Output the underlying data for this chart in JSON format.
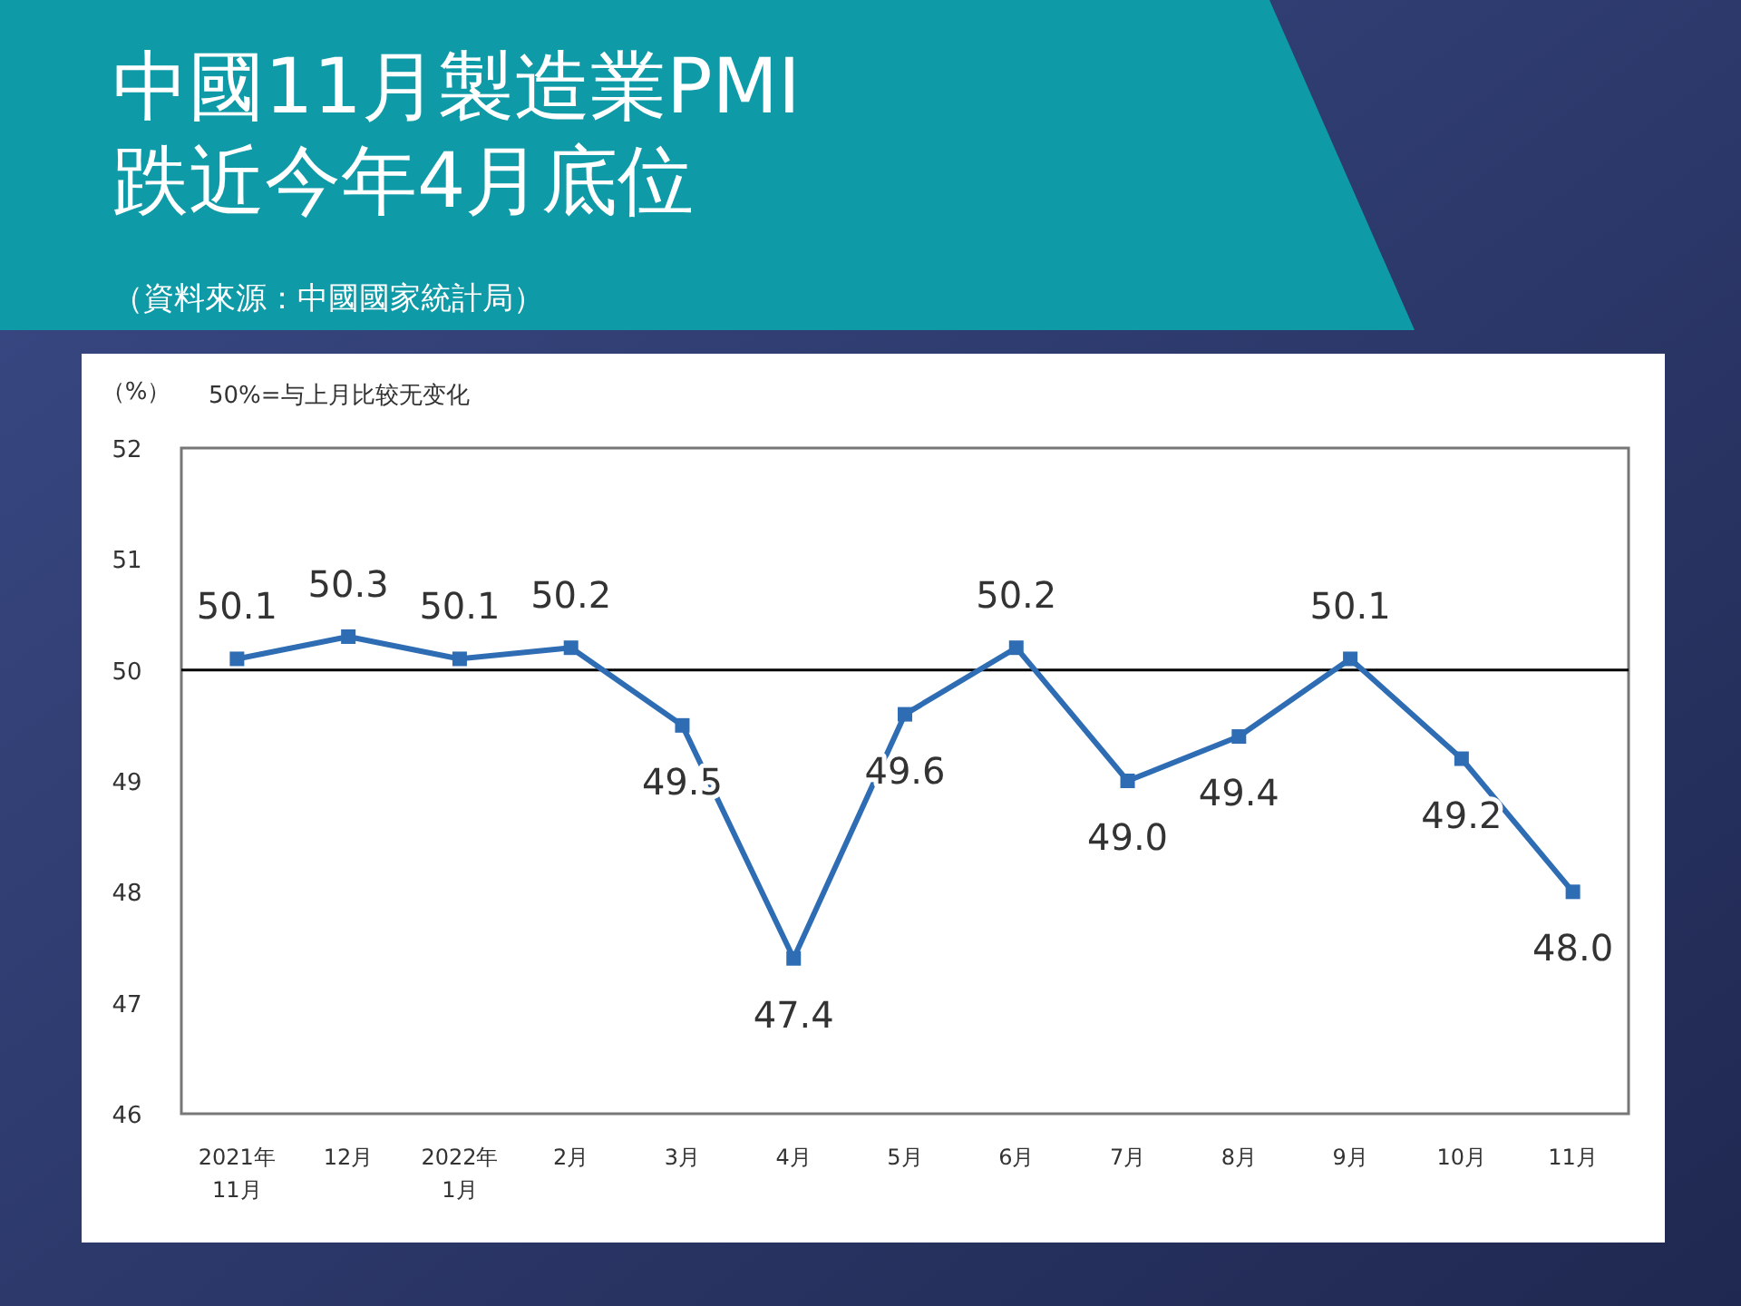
{
  "chart_data": {
    "type": "line",
    "title": "中國11月製造業PMI\n跌近今年4月底位",
    "subtitle": "（資料來源：中國國家統計局）",
    "ylabel": "（%）",
    "annotations": [
      "50%=与上月比较无变化"
    ],
    "categories": [
      "2021年\n11月",
      "12月",
      "2022年\n1月",
      "2月",
      "3月",
      "4月",
      "5月",
      "6月",
      "7月",
      "8月",
      "9月",
      "10月",
      "11月"
    ],
    "series": [
      {
        "color": "#2e6db4",
        "values": [
          50.1,
          50.3,
          50.1,
          50.2,
          49.5,
          47.4,
          49.6,
          50.2,
          49.0,
          49.4,
          50.1,
          49.2,
          48.0
        ],
        "value_labels": [
          "50.1",
          "50.3",
          "50.1",
          "50.2",
          "49.5",
          "47.4",
          "49.6",
          "50.2",
          "49.0",
          "49.4",
          "50.1",
          "49.2",
          "48.0"
        ]
      }
    ],
    "ylim": [
      46,
      52
    ],
    "yticks": [
      46,
      47,
      48,
      49,
      50,
      51,
      52
    ],
    "ref_lines": [
      {
        "axis": "y",
        "value": 50,
        "color": "#000000"
      }
    ],
    "marker": "square",
    "grid": false
  }
}
